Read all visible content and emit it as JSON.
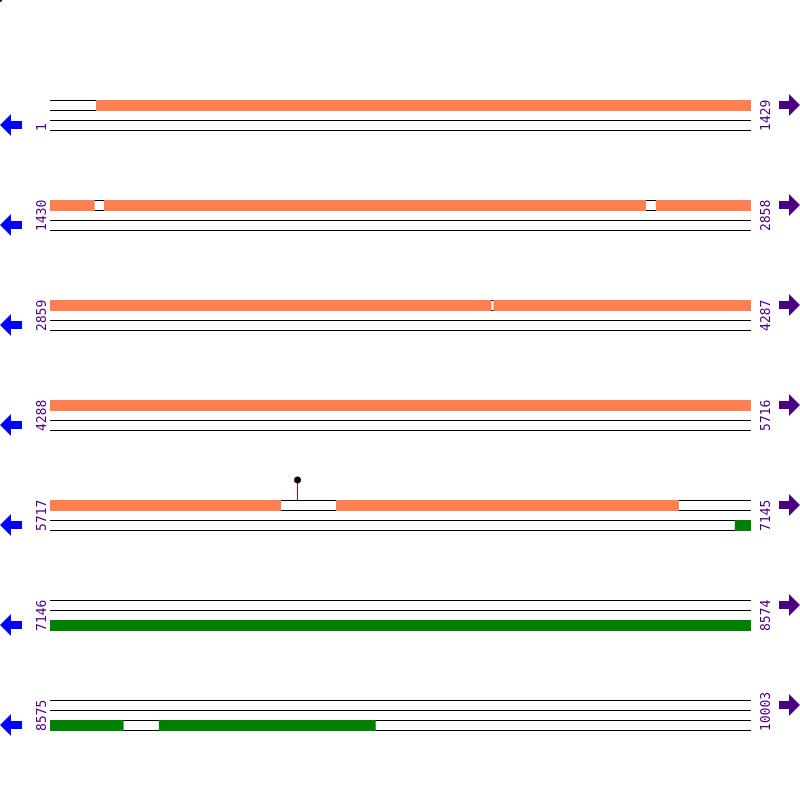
{
  "colors": {
    "cds": "#ff7f50",
    "gene": "#008000",
    "left_arrow": "#0000ff",
    "right_arrow": "#4b0082",
    "label": "#4b0082",
    "line": "#000000",
    "pin_stem": "#cc0000"
  },
  "icons": {
    "left": "arrow-left-icon",
    "right": "arrow-right-icon"
  },
  "rows": [
    {
      "start": "1",
      "end": "1429",
      "s": 1,
      "e": 1429,
      "top": [
        [
          95,
          1429
        ]
      ],
      "bottom": [],
      "pins": []
    },
    {
      "start": "1430",
      "end": "2858",
      "s": 1430,
      "e": 2858,
      "top": [
        [
          1430,
          1521
        ],
        [
          1540,
          2645
        ],
        [
          2665,
          2858
        ]
      ],
      "bottom": [],
      "pins": []
    },
    {
      "start": "2859",
      "end": "4287",
      "s": 2859,
      "e": 4287,
      "top": [
        [
          2859,
          3759
        ],
        [
          3763,
          4287
        ]
      ],
      "bottom": [],
      "pins": []
    },
    {
      "start": "4288",
      "end": "5716",
      "s": 4288,
      "e": 5716,
      "top": [
        [
          4288,
          5716
        ]
      ],
      "bottom": [],
      "pins": []
    },
    {
      "start": "5717",
      "end": "7145",
      "s": 5717,
      "e": 7145,
      "top": [
        [
          5717,
          6188
        ],
        [
          6300,
          6999
        ]
      ],
      "bottom": [
        [
          7113,
          7145
        ]
      ],
      "pins": [
        6220
      ]
    },
    {
      "start": "7146",
      "end": "8574",
      "s": 7146,
      "e": 8574,
      "top": [],
      "bottom": [
        [
          7146,
          8574
        ]
      ],
      "pins": []
    },
    {
      "start": "8575",
      "end": "10003",
      "s": 8575,
      "e": 10003,
      "top": [],
      "bottom": [
        [
          8575,
          8725
        ],
        [
          8797,
          9239
        ]
      ],
      "pins": []
    }
  ]
}
